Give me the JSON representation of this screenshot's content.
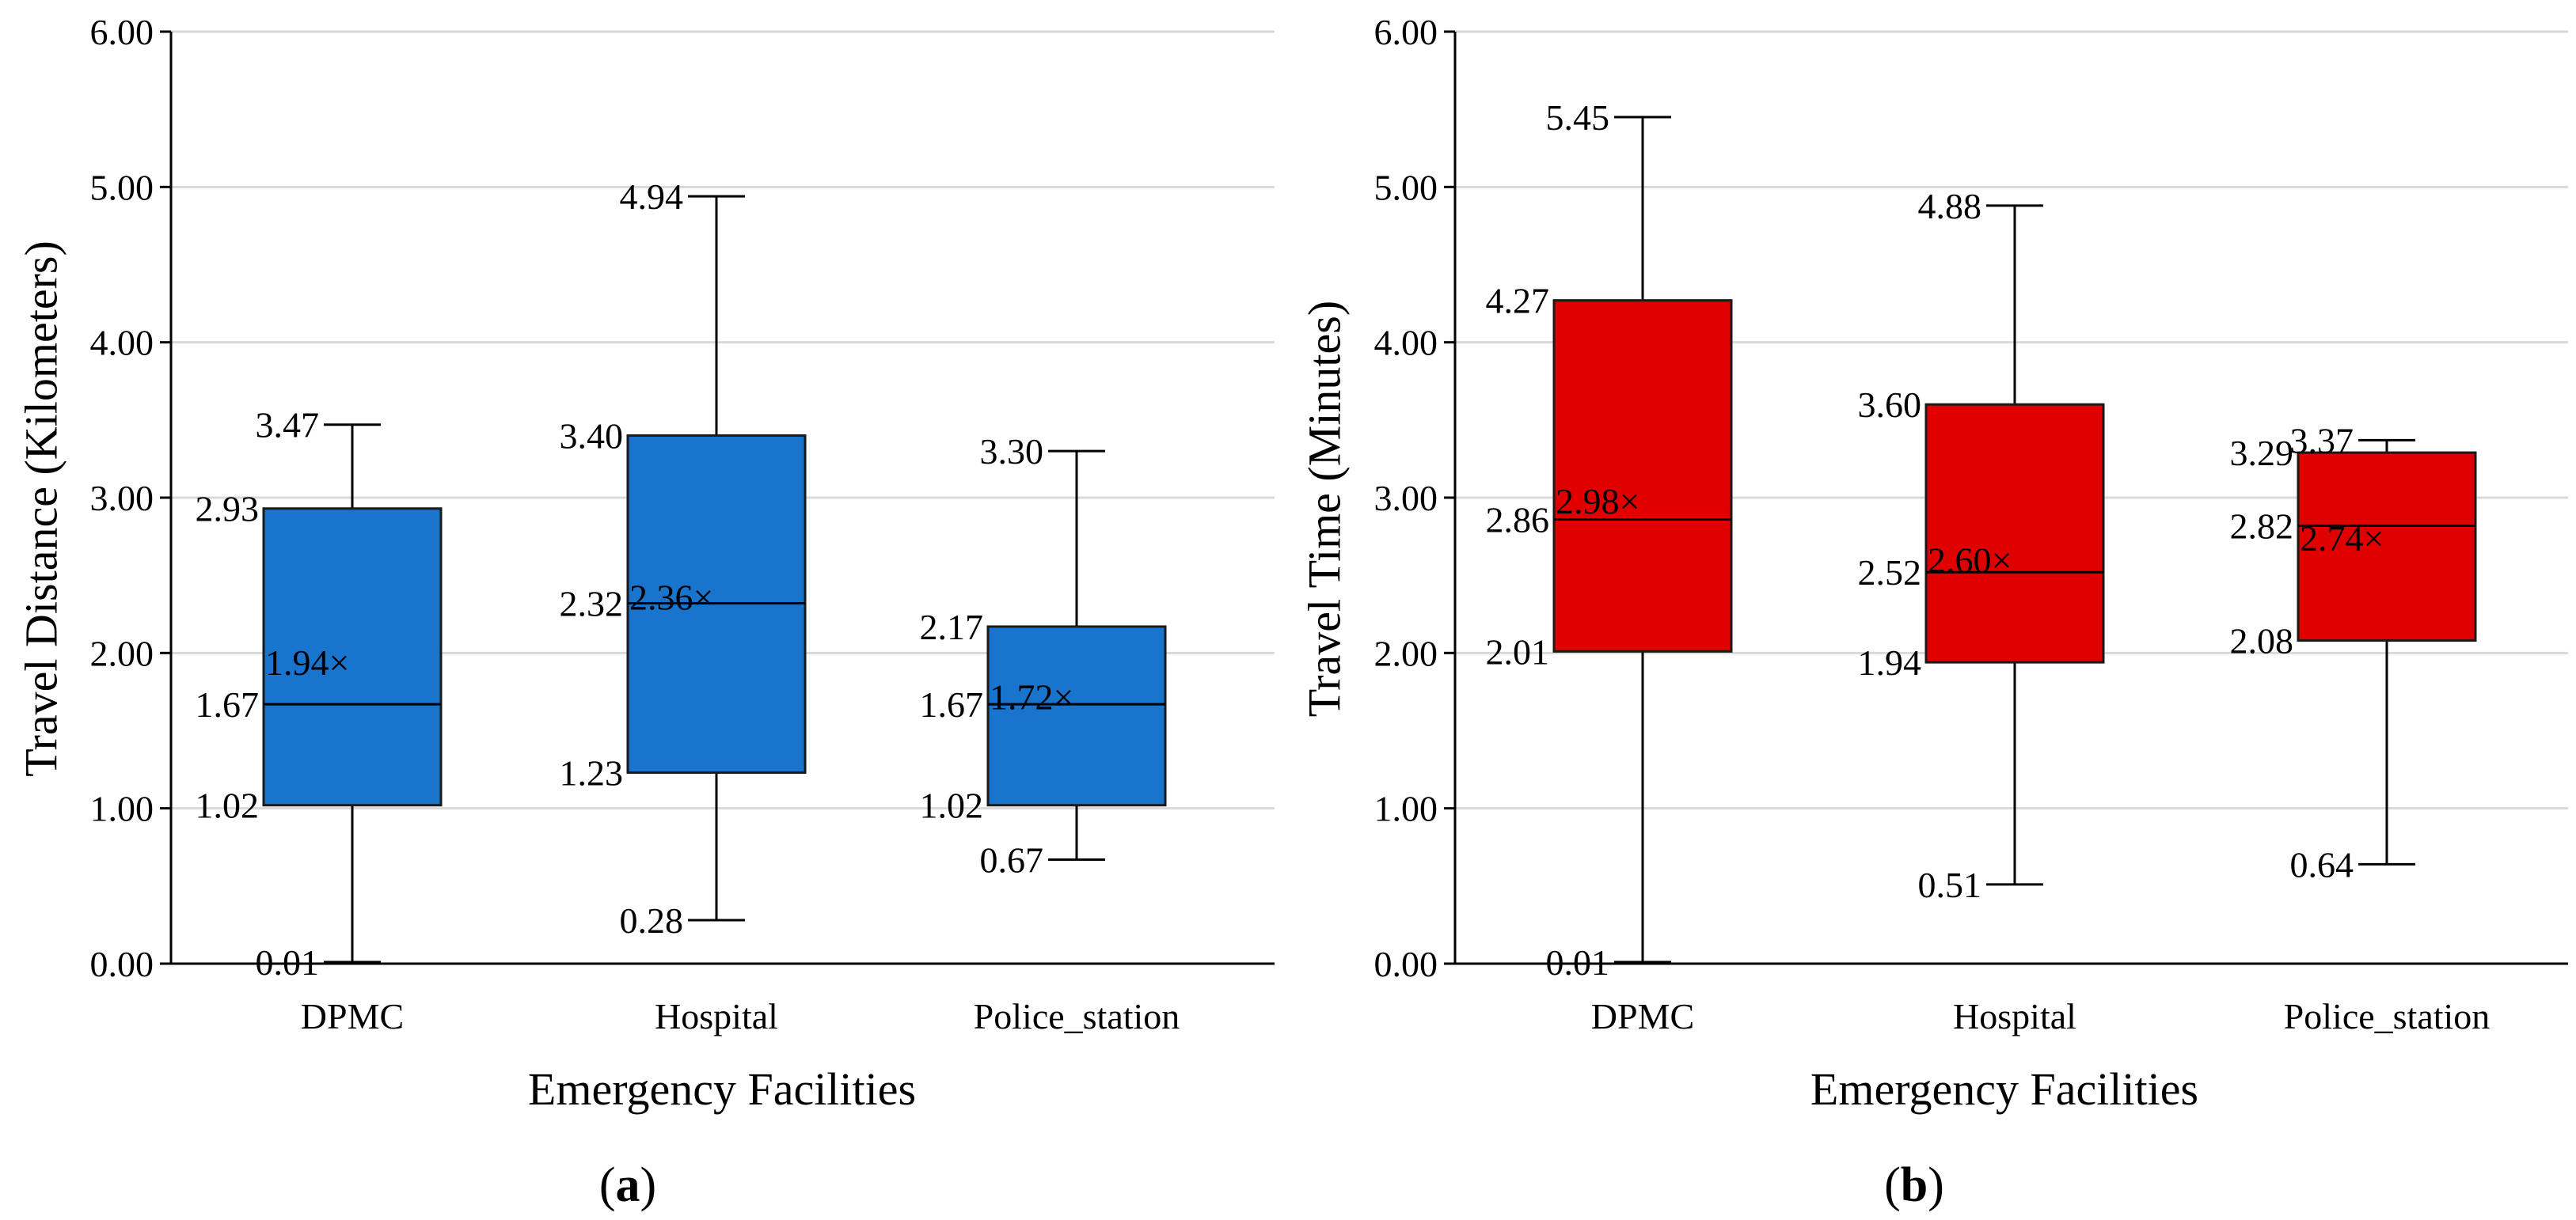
{
  "chart_data": [
    {
      "type": "box",
      "panel_label": "a",
      "xlabel": "Emergency Facilities",
      "ylabel": "Travel Distance (Kilometers)",
      "ylim": [
        0,
        6
      ],
      "y_ticks": [
        "0.00",
        "1.00",
        "2.00",
        "3.00",
        "4.00",
        "5.00",
        "6.00"
      ],
      "grid": true,
      "color": "#1874CD",
      "categories": [
        "DPMC",
        "Hospital",
        "Police_station"
      ],
      "boxes": [
        {
          "category": "DPMC",
          "min": 0.01,
          "q1": 1.02,
          "median": 1.67,
          "mean": 1.94,
          "q3": 2.93,
          "max": 3.47,
          "labels": {
            "min": "0.01",
            "q1": "1.02",
            "median": "1.67",
            "mean": "1.94×",
            "q3": "2.93",
            "max": "3.47"
          }
        },
        {
          "category": "Hospital",
          "min": 0.28,
          "q1": 1.23,
          "median": 2.32,
          "mean": 2.36,
          "q3": 3.4,
          "max": 4.94,
          "labels": {
            "min": "0.28",
            "q1": "1.23",
            "median": "2.32",
            "mean": "2.36×",
            "q3": "3.40",
            "max": "4.94"
          }
        },
        {
          "category": "Police_station",
          "min": 0.67,
          "q1": 1.02,
          "median": 1.67,
          "mean": 1.72,
          "q3": 2.17,
          "max": 3.3,
          "labels": {
            "min": "0.67",
            "q1": "1.02",
            "median": "1.67",
            "mean": "1.72×",
            "q3": "2.17",
            "max": "3.30"
          }
        }
      ]
    },
    {
      "type": "box",
      "panel_label": "b",
      "xlabel": "Emergency Facilities",
      "ylabel": "Travel Time (Minutes)",
      "ylim": [
        0,
        6
      ],
      "y_ticks": [
        "0.00",
        "1.00",
        "2.00",
        "3.00",
        "4.00",
        "5.00",
        "6.00"
      ],
      "grid": true,
      "color": "#E00000",
      "categories": [
        "DPMC",
        "Hospital",
        "Police_station"
      ],
      "boxes": [
        {
          "category": "DPMC",
          "min": 0.01,
          "q1": 2.01,
          "median": 2.86,
          "mean": 2.98,
          "q3": 4.27,
          "max": 5.45,
          "labels": {
            "min": "0.01",
            "q1": "2.01",
            "median": "2.86",
            "mean": "2.98×",
            "q3": "4.27",
            "max": "5.45"
          }
        },
        {
          "category": "Hospital",
          "min": 0.51,
          "q1": 1.94,
          "median": 2.52,
          "mean": 2.6,
          "q3": 3.6,
          "max": 4.88,
          "labels": {
            "min": "0.51",
            "q1": "1.94",
            "median": "2.52",
            "mean": "2.60×",
            "q3": "3.60",
            "max": "4.88"
          }
        },
        {
          "category": "Police_station",
          "min": 0.64,
          "q1": 2.08,
          "median": 2.82,
          "mean": 2.74,
          "q3": 3.29,
          "max": 3.37,
          "labels": {
            "min": "0.64",
            "q1": "2.08",
            "median": "2.82",
            "mean": "2.74×",
            "q3": "3.29",
            "max": "3.37"
          }
        }
      ]
    }
  ]
}
